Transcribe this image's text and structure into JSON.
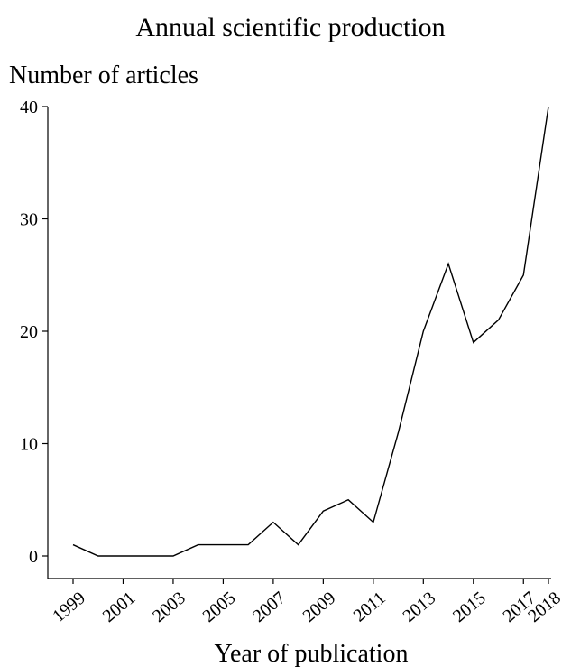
{
  "chart_data": {
    "type": "line",
    "title": "Annual scientific production",
    "ylabel": "Number of articles",
    "xlabel": "Year of publication",
    "x": [
      1999,
      2000,
      2001,
      2002,
      2003,
      2004,
      2005,
      2006,
      2007,
      2008,
      2009,
      2010,
      2011,
      2012,
      2013,
      2014,
      2015,
      2016,
      2017,
      2018
    ],
    "series": [
      {
        "values": [
          1,
          0,
          0,
          0,
          0,
          1,
          1,
          1,
          3,
          1,
          4,
          5,
          3,
          11,
          20,
          26,
          19,
          21,
          25,
          40
        ]
      }
    ],
    "xticks": [
      "1999",
      "2001",
      "2003",
      "2005",
      "2007",
      "2009",
      "2011",
      "2013",
      "2015",
      "2017",
      "2018"
    ],
    "yticks": [
      "0",
      "10",
      "20",
      "30",
      "40"
    ],
    "ylim": [
      0,
      40
    ],
    "xlim": [
      1999,
      2018
    ],
    "grid": false,
    "line_color": "#000000"
  }
}
